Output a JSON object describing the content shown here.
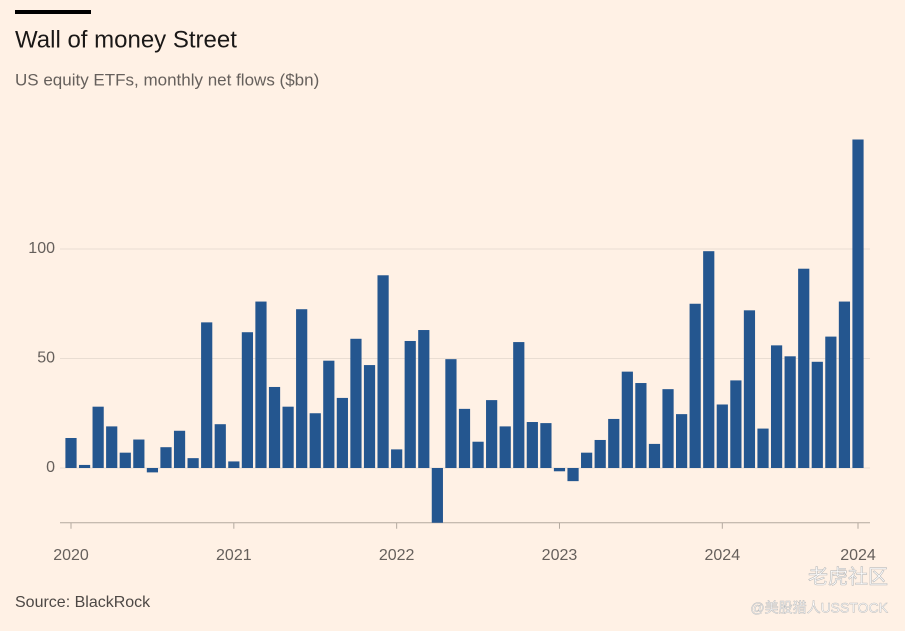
{
  "chart_data": {
    "type": "bar",
    "title": "Wall of money Street",
    "subtitle": "US equity ETFs, monthly net flows ($bn)",
    "source": "Source: BlackRock",
    "watermark": [
      "老虎社区",
      "@美股猎人USSTOCK"
    ],
    "color": "#24568f",
    "categories": [
      "2020",
      null,
      null,
      null,
      null,
      null,
      null,
      null,
      null,
      null,
      null,
      null,
      "2021",
      null,
      null,
      null,
      null,
      null,
      null,
      null,
      null,
      null,
      null,
      null,
      "2022",
      null,
      null,
      null,
      null,
      null,
      null,
      null,
      null,
      null,
      null,
      null,
      "2023",
      null,
      null,
      null,
      null,
      null,
      null,
      null,
      null,
      null,
      null,
      null,
      "2024",
      null,
      null,
      null,
      null,
      null,
      null,
      null,
      null,
      null,
      "2024"
    ],
    "values": [
      13.7,
      1.4,
      28,
      19,
      7,
      13,
      -2,
      9.5,
      17,
      4.5,
      66.5,
      20,
      3,
      62,
      76,
      37,
      28,
      72.5,
      25,
      49,
      32,
      59,
      47,
      88,
      8.5,
      58,
      63,
      -25,
      49.7,
      27,
      12,
      31,
      19,
      57.5,
      21,
      20.5,
      -1.5,
      -6,
      7,
      12.8,
      22.4,
      44,
      38.8,
      11,
      36,
      24.6,
      75,
      99,
      29,
      40,
      72,
      18,
      56,
      51,
      91,
      48.5,
      60,
      76,
      150
    ],
    "ylim": [
      -25,
      150
    ],
    "yticks": [
      0,
      50,
      100
    ],
    "grid": true
  }
}
